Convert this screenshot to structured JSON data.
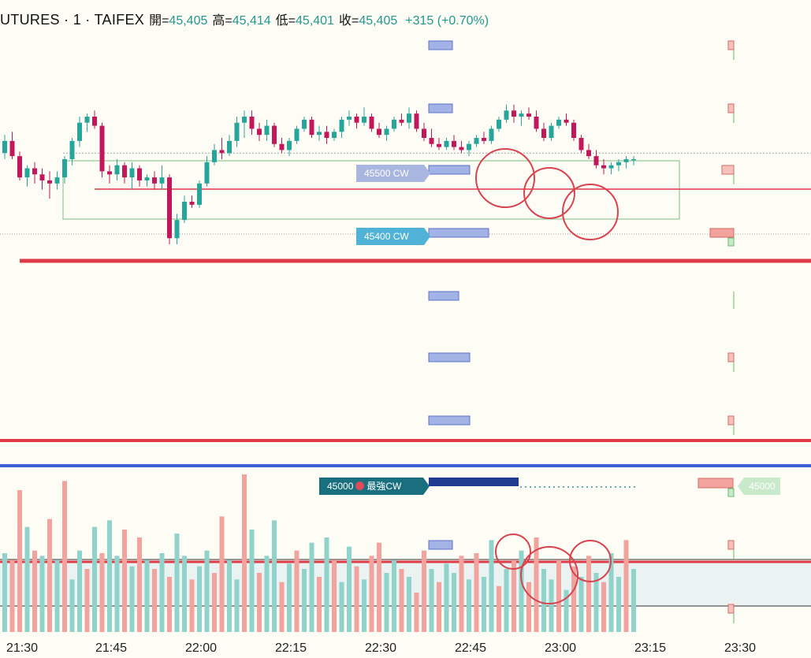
{
  "header": {
    "symbol": "UTURES · 1 · TAIFEX",
    "open_label": "開=",
    "open": "45,405",
    "high_label": "高=",
    "high": "45,414",
    "low_label": "低=",
    "low": "45,401",
    "close_label": "收=",
    "close": "45,405",
    "change": "+315 (+0.70%)"
  },
  "tags": {
    "cw_45500": "45500 CW",
    "cw_45400": "45400 CW",
    "cw_45000_strike": "45000",
    "cw_45000_label": "最強CW",
    "right_45000": "45000"
  },
  "colors": {
    "up": "#26a69a",
    "down": "#c2185b",
    "vol_up": "#8fd3cb",
    "vol_down": "#f2a39e",
    "red_line": "#e03a47",
    "blue_line": "#3a62d8",
    "box": "#a7d3a4",
    "circle": "#d9434e"
  },
  "chart_data": {
    "type": "candlestick",
    "x_ticks": [
      "21:30",
      "21:45",
      "22:00",
      "22:15",
      "22:30",
      "22:45",
      "23:00",
      "23:15",
      "23:30"
    ],
    "candles_ohlc": [
      [
        45380,
        45392,
        45376,
        45388
      ],
      [
        45388,
        45394,
        45376,
        45378
      ],
      [
        45378,
        45381,
        45362,
        45364
      ],
      [
        45364,
        45372,
        45358,
        45370
      ],
      [
        45370,
        45374,
        45360,
        45366
      ],
      [
        45366,
        45370,
        45356,
        45362
      ],
      [
        45362,
        45368,
        45350,
        45360
      ],
      [
        45360,
        45368,
        45356,
        45364
      ],
      [
        45364,
        45378,
        45360,
        45376
      ],
      [
        45376,
        45390,
        45372,
        45388
      ],
      [
        45388,
        45404,
        45384,
        45400
      ],
      [
        45400,
        45406,
        45394,
        45404
      ],
      [
        45404,
        45408,
        45396,
        45398
      ],
      [
        45398,
        45400,
        45364,
        45368
      ],
      [
        45368,
        45372,
        45360,
        45366
      ],
      [
        45366,
        45376,
        45362,
        45372
      ],
      [
        45372,
        45374,
        45360,
        45364
      ],
      [
        45364,
        45374,
        45356,
        45370
      ],
      [
        45370,
        45372,
        45358,
        45362
      ],
      [
        45362,
        45366,
        45358,
        45364
      ],
      [
        45364,
        45368,
        45356,
        45360
      ],
      [
        45360,
        45372,
        45356,
        45364
      ],
      [
        45364,
        45366,
        45320,
        45324
      ],
      [
        45324,
        45340,
        45320,
        45336
      ],
      [
        45336,
        45352,
        45334,
        45348
      ],
      [
        45348,
        45352,
        45344,
        45346
      ],
      [
        45346,
        45362,
        45344,
        45360
      ],
      [
        45360,
        45378,
        45358,
        45374
      ],
      [
        45374,
        45386,
        45372,
        45382
      ],
      [
        45382,
        45390,
        45376,
        45380
      ],
      [
        45380,
        45392,
        45378,
        45388
      ],
      [
        45388,
        45404,
        45384,
        45400
      ],
      [
        45400,
        45408,
        45390,
        45404
      ],
      [
        45404,
        45408,
        45392,
        45396
      ],
      [
        45396,
        45400,
        45388,
        45392
      ],
      [
        45392,
        45402,
        45388,
        45398
      ],
      [
        45398,
        45400,
        45384,
        45386
      ],
      [
        45386,
        45390,
        45380,
        45382
      ],
      [
        45382,
        45390,
        45378,
        45388
      ],
      [
        45388,
        45398,
        45386,
        45396
      ],
      [
        45396,
        45404,
        45394,
        45402
      ],
      [
        45402,
        45404,
        45390,
        45392
      ],
      [
        45392,
        45398,
        45388,
        45394
      ],
      [
        45394,
        45398,
        45386,
        45390
      ],
      [
        45390,
        45396,
        45388,
        45394
      ],
      [
        45394,
        45404,
        45390,
        45402
      ],
      [
        45402,
        45408,
        45398,
        45404
      ],
      [
        45404,
        45406,
        45396,
        45400
      ],
      [
        45400,
        45410,
        45398,
        45404
      ],
      [
        45404,
        45406,
        45394,
        45396
      ],
      [
        45396,
        45400,
        45390,
        45392
      ],
      [
        45392,
        45398,
        45388,
        45396
      ],
      [
        45396,
        45404,
        45394,
        45402
      ],
      [
        45402,
        45406,
        45398,
        45400
      ],
      [
        45400,
        45410,
        45396,
        45406
      ],
      [
        45406,
        45408,
        45394,
        45396
      ],
      [
        45396,
        45400,
        45388,
        45390
      ],
      [
        45390,
        45396,
        45384,
        45386
      ],
      [
        45386,
        45390,
        45382,
        45384
      ],
      [
        45384,
        45390,
        45382,
        45388
      ],
      [
        45388,
        45392,
        45382,
        45384
      ],
      [
        45384,
        45388,
        45380,
        45382
      ],
      [
        45382,
        45388,
        45378,
        45386
      ],
      [
        45386,
        45392,
        45384,
        45390
      ],
      [
        45390,
        45394,
        45386,
        45388
      ],
      [
        45388,
        45398,
        45386,
        45396
      ],
      [
        45396,
        45404,
        45394,
        45402
      ],
      [
        45402,
        45412,
        45400,
        45408
      ],
      [
        45408,
        45412,
        45400,
        45404
      ],
      [
        45404,
        45408,
        45398,
        45406
      ],
      [
        45406,
        45410,
        45402,
        45404
      ],
      [
        45404,
        45408,
        45394,
        45396
      ],
      [
        45396,
        45400,
        45388,
        45390
      ],
      [
        45390,
        45400,
        45388,
        45398
      ],
      [
        45398,
        45404,
        45396,
        45402
      ],
      [
        45402,
        45406,
        45398,
        45400
      ],
      [
        45400,
        45402,
        45388,
        45390
      ],
      [
        45390,
        45392,
        45380,
        45382
      ],
      [
        45382,
        45386,
        45376,
        45378
      ],
      [
        45378,
        45382,
        45370,
        45372
      ],
      [
        45372,
        45376,
        45366,
        45370
      ],
      [
        45370,
        45374,
        45366,
        45372
      ],
      [
        45372,
        45376,
        45368,
        45374
      ],
      [
        45374,
        45378,
        45370,
        45376
      ],
      [
        45376,
        45378,
        45372,
        45376
      ]
    ],
    "volume": [
      60,
      55,
      108,
      80,
      62,
      58,
      86,
      55,
      115,
      40,
      62,
      48,
      80,
      60,
      85,
      58,
      78,
      50,
      72,
      55,
      48,
      60,
      42,
      75,
      58,
      40,
      50,
      62,
      45,
      88,
      55,
      40,
      120,
      78,
      45,
      58,
      85,
      38,
      52,
      62,
      48,
      68,
      42,
      72,
      55,
      38,
      65,
      50,
      40,
      58,
      68,
      45,
      55,
      48,
      42,
      30,
      62,
      48,
      38,
      52,
      45,
      58,
      40,
      60,
      42,
      70,
      35,
      48,
      55,
      62,
      38,
      72,
      48,
      40,
      55,
      32,
      50,
      42,
      58,
      45,
      38,
      60,
      42,
      70,
      48
    ],
    "volume_colors_up": [
      1,
      0,
      0,
      1,
      0,
      1,
      0,
      1,
      0,
      1,
      1,
      0,
      1,
      0,
      1,
      1,
      0,
      1,
      0,
      1,
      0,
      1,
      0,
      1,
      1,
      0,
      1,
      1,
      0,
      0,
      1,
      1,
      0,
      1,
      0,
      1,
      1,
      0,
      1,
      0,
      1,
      1,
      0,
      1,
      0,
      1,
      1,
      0,
      1,
      0,
      0,
      1,
      1,
      0,
      1,
      0,
      0,
      1,
      0,
      1,
      1,
      0,
      1,
      0,
      1,
      1,
      0,
      1,
      0,
      1,
      0,
      0,
      1,
      1,
      0,
      1,
      0,
      1,
      0,
      1,
      0,
      1,
      1,
      0,
      1
    ],
    "levels": {
      "resistance": 45400,
      "support_thick": 45360,
      "lower_red": 45215,
      "dashed_gray": 45380,
      "cw_45500": 45500,
      "cw_45400": 45400
    },
    "ylim": [
      45180,
      45460
    ]
  }
}
